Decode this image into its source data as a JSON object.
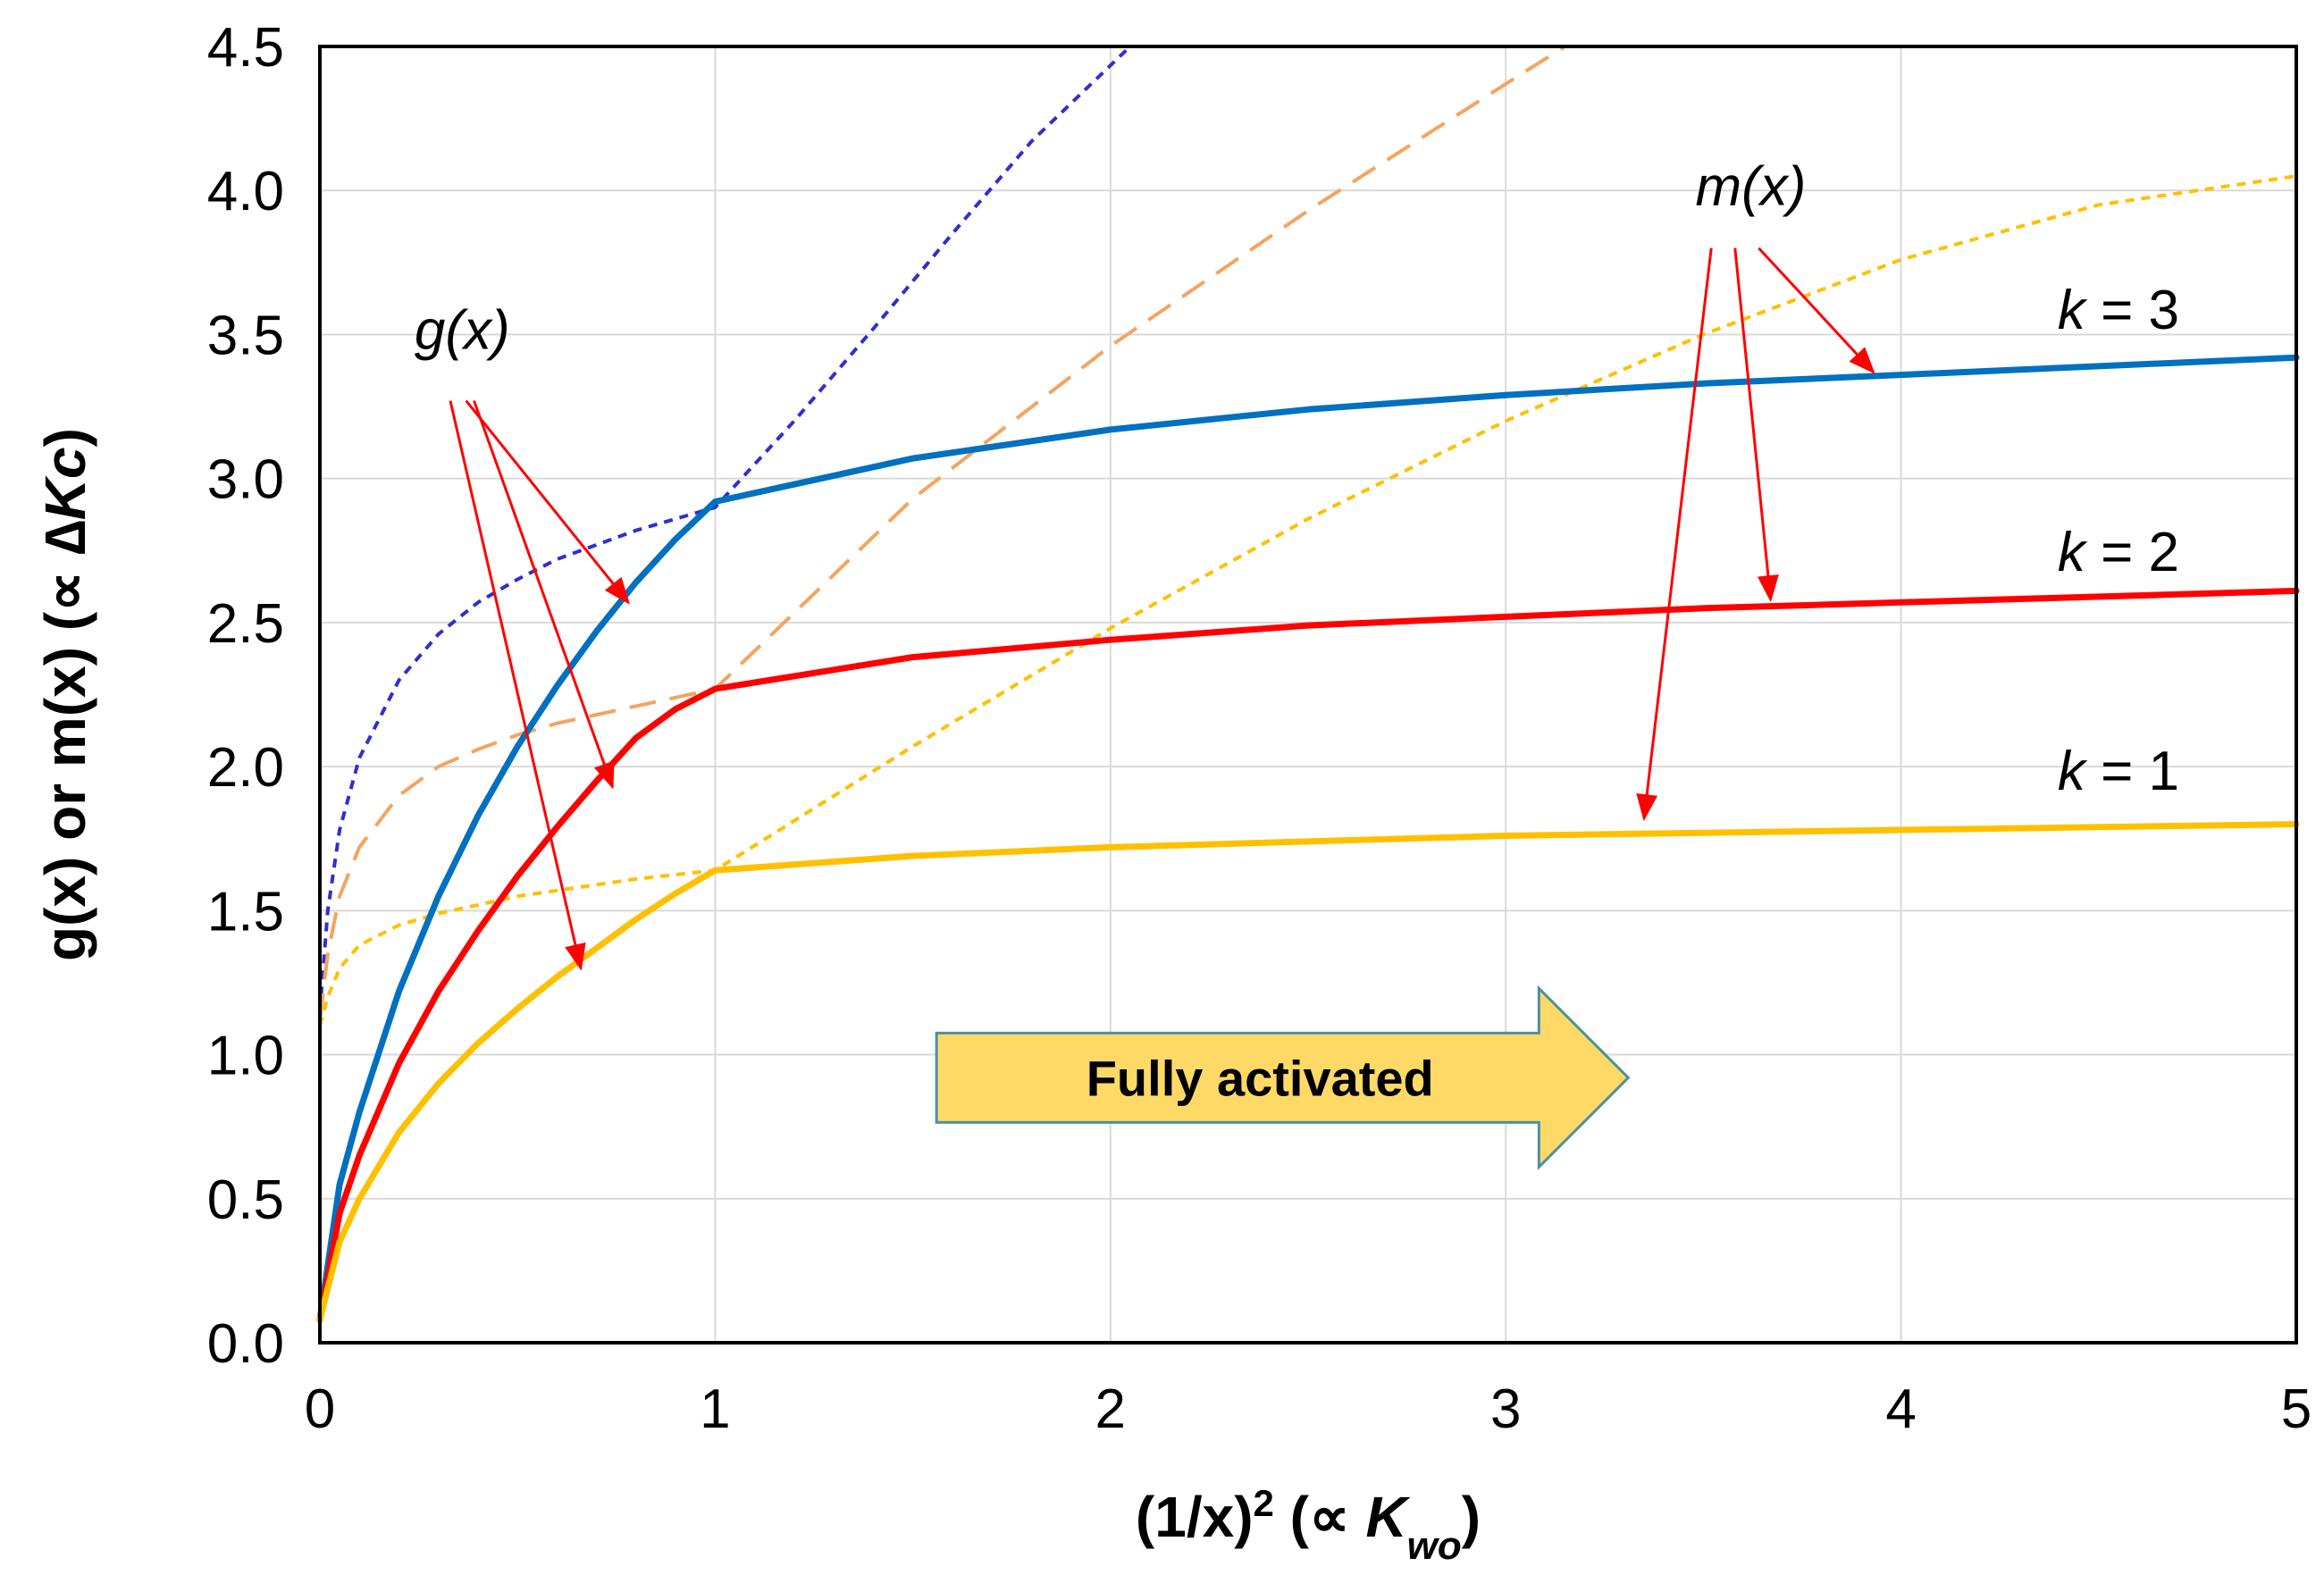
{
  "chart_data": {
    "type": "line",
    "xlabel": {
      "main": "(1/x)",
      "sup": "2",
      "paren": " (∝ ",
      "var": "K",
      "sub": "wo",
      "close": ")"
    },
    "ylabel": {
      "main": "g(x) or m(x) (∝ ∆",
      "var": "Kc",
      "close": ")"
    },
    "xlim": [
      0,
      5
    ],
    "ylim": [
      0,
      4.5
    ],
    "x_ticks": [
      "0",
      "1",
      "2",
      "3",
      "4",
      "5"
    ],
    "y_ticks": [
      "0.0",
      "0.5",
      "1.0",
      "1.5",
      "2.0",
      "2.5",
      "3.0",
      "3.5",
      "4.0",
      "4.5"
    ],
    "grid": true,
    "colors": {
      "k1": "#FFC000",
      "k2": "#FF0000",
      "k3": "#0070C0",
      "k3_dashed": "#2F2FD0",
      "k2_dashed": "#F4A460",
      "k1_dashed": "#FFC000",
      "annotation_arrow": "#FF0000",
      "banner_fill": "#FFD966",
      "banner_stroke": "#4A90A4"
    },
    "series": [
      {
        "name": "k = 3 solid",
        "style": "solid",
        "color_key": "k3",
        "x": [
          0,
          0.05,
          0.1,
          0.2,
          0.3,
          0.4,
          0.5,
          0.6,
          0.7,
          0.8,
          0.9,
          1.0,
          1.5,
          2.0,
          2.5,
          3.0,
          3.5,
          4.0,
          4.5,
          5.0
        ],
        "y": [
          0.08,
          0.55,
          0.8,
          1.22,
          1.55,
          1.83,
          2.07,
          2.28,
          2.47,
          2.64,
          2.79,
          2.92,
          3.07,
          3.17,
          3.24,
          3.29,
          3.33,
          3.36,
          3.39,
          3.42
        ]
      },
      {
        "name": "k = 2 solid",
        "style": "solid",
        "color_key": "k2",
        "x": [
          0,
          0.05,
          0.1,
          0.2,
          0.3,
          0.4,
          0.5,
          0.6,
          0.7,
          0.8,
          0.9,
          1.0,
          1.5,
          2.0,
          2.5,
          3.0,
          3.5,
          4.0,
          4.5,
          5.0
        ],
        "y": [
          0.08,
          0.45,
          0.65,
          0.97,
          1.22,
          1.43,
          1.62,
          1.79,
          1.95,
          2.1,
          2.2,
          2.27,
          2.38,
          2.44,
          2.49,
          2.52,
          2.55,
          2.57,
          2.59,
          2.61
        ]
      },
      {
        "name": "k = 1 solid",
        "style": "solid",
        "color_key": "k1",
        "x": [
          0,
          0.05,
          0.1,
          0.2,
          0.3,
          0.4,
          0.5,
          0.6,
          0.7,
          0.8,
          0.9,
          1.0,
          1.5,
          2.0,
          2.5,
          3.0,
          3.5,
          4.0,
          4.5,
          5.0
        ],
        "y": [
          0.08,
          0.35,
          0.5,
          0.73,
          0.9,
          1.04,
          1.16,
          1.27,
          1.37,
          1.47,
          1.56,
          1.64,
          1.69,
          1.72,
          1.74,
          1.76,
          1.77,
          1.78,
          1.79,
          1.8
        ]
      },
      {
        "name": "k = 3 dashed",
        "style": "dotted",
        "color_key": "k3_dashed",
        "x": [
          0,
          0.02,
          0.05,
          0.1,
          0.2,
          0.3,
          0.4,
          0.5,
          0.6,
          0.8,
          1.0,
          1.2,
          1.4,
          1.6,
          1.8,
          2.05
        ],
        "y": [
          1.15,
          1.5,
          1.78,
          2.03,
          2.3,
          2.46,
          2.57,
          2.65,
          2.72,
          2.82,
          2.9,
          3.2,
          3.52,
          3.85,
          4.17,
          4.5
        ]
      },
      {
        "name": "k = 2 dashed",
        "style": "dashed",
        "color_key": "k2_dashed",
        "x": [
          0,
          0.02,
          0.05,
          0.1,
          0.2,
          0.3,
          0.4,
          0.5,
          0.6,
          0.8,
          1.0,
          1.5,
          2.0,
          2.5,
          3.0,
          3.15
        ],
        "y": [
          1.12,
          1.35,
          1.55,
          1.72,
          1.9,
          2.0,
          2.06,
          2.11,
          2.15,
          2.21,
          2.27,
          2.93,
          3.46,
          3.93,
          4.37,
          4.5
        ]
      },
      {
        "name": "k = 1 dashed",
        "style": "dotted",
        "color_key": "k1_dashed",
        "x": [
          0,
          0.02,
          0.05,
          0.1,
          0.2,
          0.3,
          0.4,
          0.5,
          0.6,
          0.8,
          1.0,
          1.5,
          2.0,
          2.5,
          3.0,
          3.5,
          4.0,
          4.5,
          5.0
        ],
        "y": [
          1.1,
          1.2,
          1.3,
          1.38,
          1.45,
          1.49,
          1.52,
          1.55,
          1.57,
          1.61,
          1.64,
          2.07,
          2.48,
          2.86,
          3.2,
          3.5,
          3.76,
          3.95,
          4.05
        ]
      }
    ],
    "annotations": [
      {
        "name": "g-label",
        "text": "g(x)",
        "x": 0.36,
        "y": 3.45
      },
      {
        "name": "m-label",
        "text": "m(x)",
        "x": 3.62,
        "y": 3.95
      },
      {
        "name": "k3-label",
        "text": "k = 3",
        "x": 4.55,
        "y": 3.52
      },
      {
        "name": "k2-label",
        "text": "k = 2",
        "x": 4.55,
        "y": 2.68
      },
      {
        "name": "k1-label",
        "text": "k = 1",
        "x": 4.55,
        "y": 1.92
      }
    ],
    "arrows": [
      {
        "from": [
          0.37,
          3.27
        ],
        "to": [
          0.78,
          2.57
        ]
      },
      {
        "from": [
          0.39,
          3.27
        ],
        "to": [
          0.74,
          1.93
        ]
      },
      {
        "from": [
          0.33,
          3.27
        ],
        "to": [
          0.66,
          1.3
        ]
      },
      {
        "from": [
          3.52,
          3.8
        ],
        "to": [
          3.35,
          1.82
        ]
      },
      {
        "from": [
          3.58,
          3.8
        ],
        "to": [
          3.67,
          2.58
        ]
      },
      {
        "from": [
          3.64,
          3.8
        ],
        "to": [
          3.93,
          3.37
        ]
      }
    ],
    "banner": {
      "text": "Fully activated",
      "x_start": 1.56,
      "x_end": 3.31,
      "y_center": 0.92
    }
  }
}
